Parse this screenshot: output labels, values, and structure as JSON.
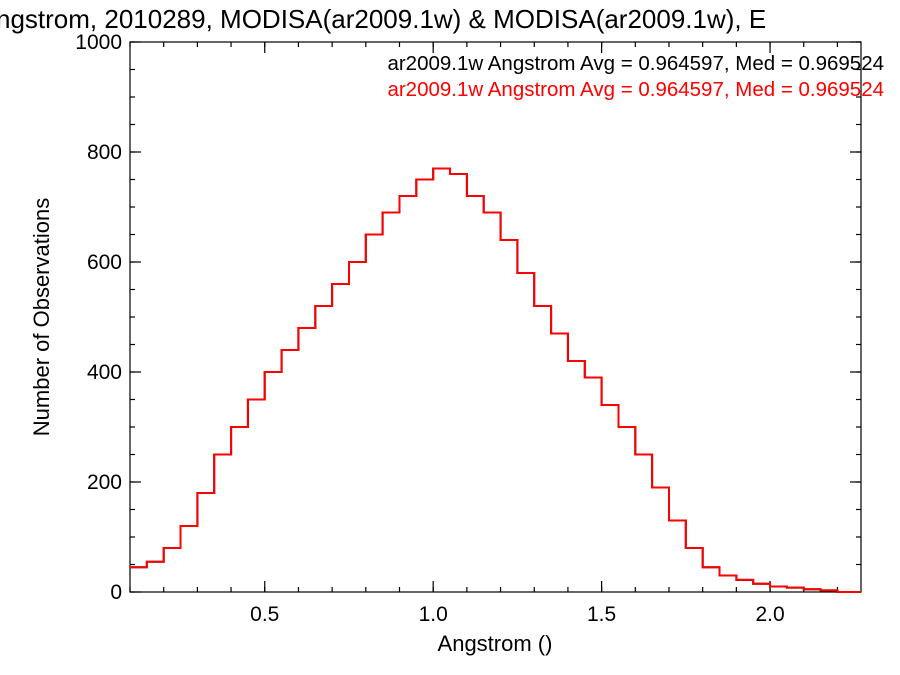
{
  "chart_data": {
    "type": "line",
    "title": "ngstrom, 2010289, MODISA(ar2009.1w) & MODISA(ar2009.1w), E",
    "xlabel": "Angstrom ()",
    "ylabel": "Number of Observations",
    "xlim": [
      0.1,
      2.27
    ],
    "ylim": [
      0,
      1000
    ],
    "x_ticks": [
      0.5,
      1.0,
      1.5,
      2.0
    ],
    "x_tick_labels": [
      "0.5",
      "1.0",
      "1.5",
      "2.0"
    ],
    "y_ticks": [
      0,
      200,
      400,
      600,
      800,
      1000
    ],
    "y_tick_labels": [
      "0",
      "200",
      "400",
      "600",
      "800",
      "1000"
    ],
    "grid": false,
    "legend_position": "top-right",
    "series": [
      {
        "name": "ar2009.1w Angstrom Avg = 0.964597, Med = 0.969524",
        "color": "#000000",
        "x": [
          0.1,
          0.15,
          0.2,
          0.25,
          0.3,
          0.35,
          0.4,
          0.45,
          0.5,
          0.55,
          0.6,
          0.65,
          0.7,
          0.75,
          0.8,
          0.85,
          0.9,
          0.95,
          1.0,
          1.05,
          1.1,
          1.15,
          1.2,
          1.25,
          1.3,
          1.35,
          1.4,
          1.45,
          1.5,
          1.55,
          1.6,
          1.65,
          1.7,
          1.75,
          1.8,
          1.85,
          1.9,
          1.95,
          2.0,
          2.05,
          2.1,
          2.15,
          2.2,
          2.27
        ],
        "y": [
          45,
          55,
          80,
          120,
          180,
          250,
          300,
          350,
          400,
          440,
          480,
          520,
          560,
          600,
          650,
          690,
          720,
          750,
          770,
          760,
          720,
          690,
          640,
          580,
          520,
          470,
          420,
          390,
          340,
          300,
          250,
          190,
          130,
          80,
          45,
          30,
          22,
          15,
          10,
          8,
          5,
          3,
          0,
          0
        ]
      },
      {
        "name": "ar2009.1w Angstrom Avg = 0.964597, Med = 0.969524",
        "color": "#ff0000",
        "x": [
          0.1,
          0.15,
          0.2,
          0.25,
          0.3,
          0.35,
          0.4,
          0.45,
          0.5,
          0.55,
          0.6,
          0.65,
          0.7,
          0.75,
          0.8,
          0.85,
          0.9,
          0.95,
          1.0,
          1.05,
          1.1,
          1.15,
          1.2,
          1.25,
          1.3,
          1.35,
          1.4,
          1.45,
          1.5,
          1.55,
          1.6,
          1.65,
          1.7,
          1.75,
          1.8,
          1.85,
          1.9,
          1.95,
          2.0,
          2.05,
          2.1,
          2.15,
          2.2,
          2.27
        ],
        "y": [
          45,
          55,
          80,
          120,
          180,
          250,
          300,
          350,
          400,
          440,
          480,
          520,
          560,
          600,
          650,
          690,
          720,
          750,
          770,
          760,
          720,
          690,
          640,
          580,
          520,
          470,
          420,
          390,
          340,
          300,
          250,
          190,
          130,
          80,
          45,
          30,
          22,
          15,
          10,
          8,
          5,
          3,
          0,
          0
        ]
      }
    ]
  }
}
